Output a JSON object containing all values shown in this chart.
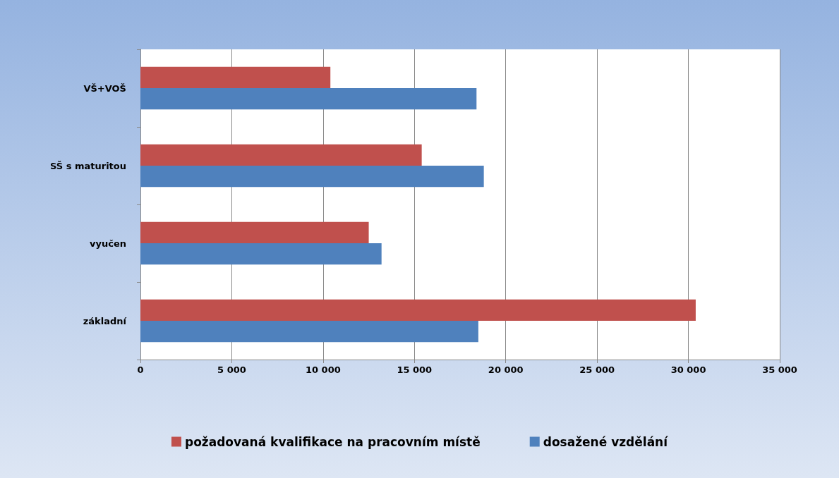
{
  "chart_data": {
    "type": "bar",
    "orientation": "horizontal",
    "categories": [
      "VŠ+VOŠ",
      "SŠ s maturitou",
      "vyučen",
      "základní"
    ],
    "series": [
      {
        "name": "požadovaná kvalifikace na pracovním místě",
        "color": "#c0504d",
        "values": [
          10400,
          15400,
          12500,
          30400
        ]
      },
      {
        "name": "dosažené vzdělání",
        "color": "#4f81bd",
        "values": [
          18400,
          18800,
          13200,
          18500
        ]
      }
    ],
    "xlim": [
      0,
      35000
    ],
    "xticks": [
      0,
      {
        "value": 5000,
        "label": "5 000"
      },
      {
        "value": 10000,
        "label": "10 000"
      },
      {
        "value": 15000,
        "label": "15 000"
      },
      {
        "value": 20000,
        "label": "20 000"
      },
      {
        "value": 25000,
        "label": "25 000"
      },
      {
        "value": 30000,
        "label": "30 000"
      },
      {
        "value": 35000,
        "label": "35 000"
      }
    ],
    "grid": "x",
    "legend": "bottom"
  }
}
